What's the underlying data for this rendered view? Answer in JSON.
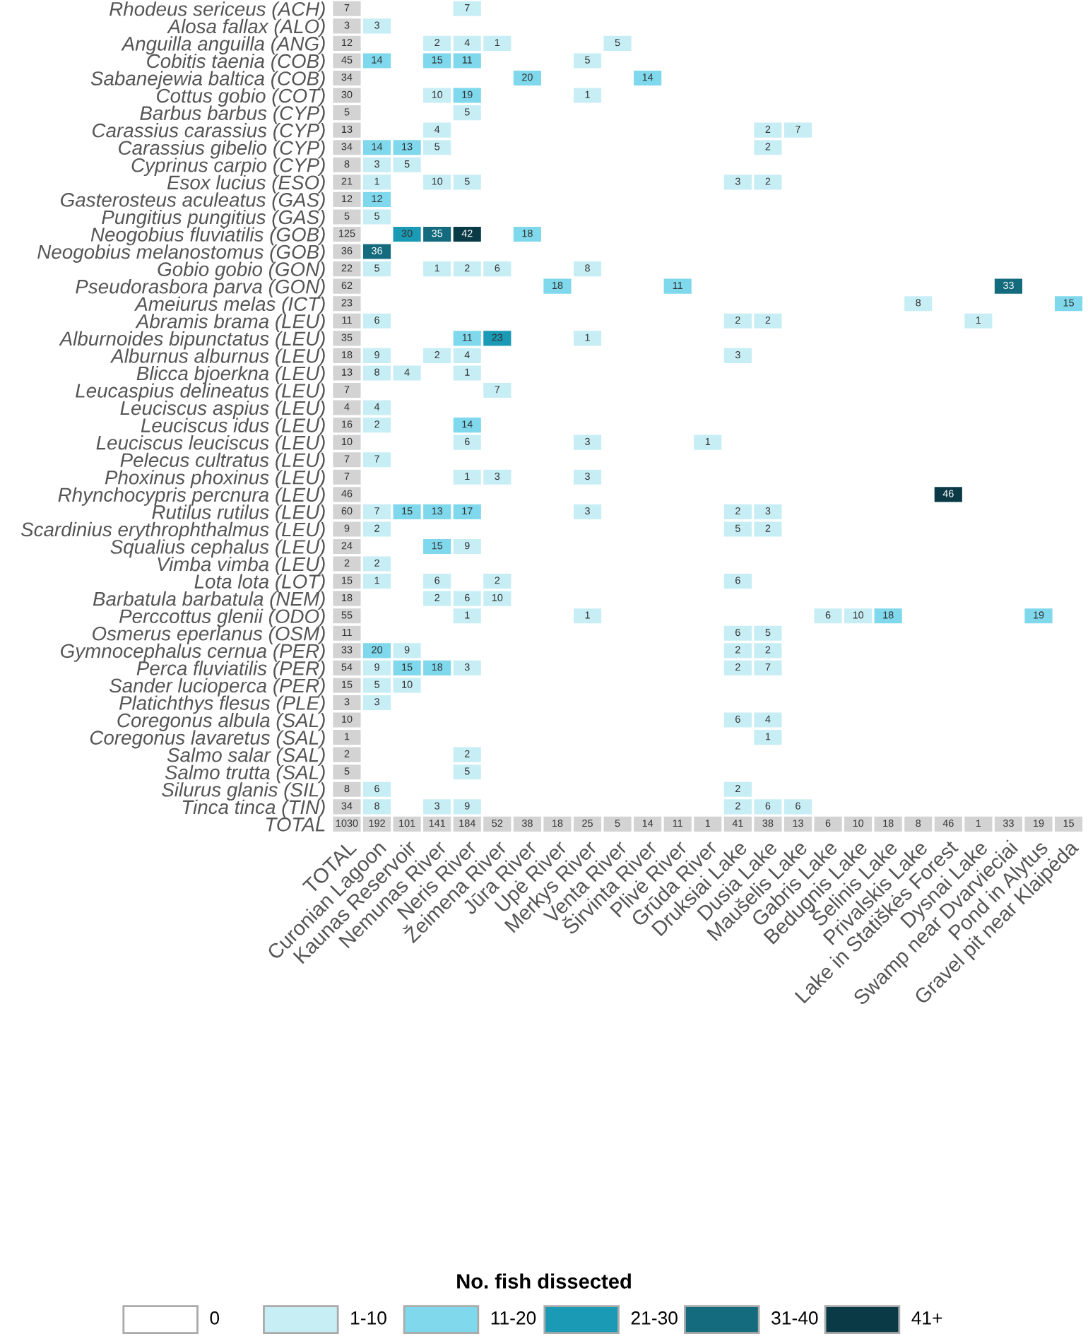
{
  "chart_data": {
    "type": "heatmap",
    "legend_title": "No. fish dissected",
    "data_labels": true,
    "annotations": [
      "0",
      "1-10",
      "11-20",
      "21-30",
      "31-40",
      "41+"
    ],
    "colors": [
      [
        "#d3d3d3",
        null,
        null,
        null,
        "#c8eef5",
        null,
        null,
        null,
        null,
        null,
        null,
        null,
        null,
        null,
        null,
        null,
        null,
        null,
        null,
        null,
        null,
        null,
        null,
        null,
        null
      ],
      [
        "#d3d3d3",
        "#c8eef5",
        null,
        null,
        null,
        null,
        null,
        null,
        null,
        null,
        null,
        null,
        null,
        null,
        null,
        null,
        null,
        null,
        null,
        null,
        null,
        null,
        null,
        null,
        null
      ],
      [
        "#d3d3d3",
        null,
        null,
        "#c8eef5",
        "#c8eef5",
        "#c8eef5",
        null,
        null,
        null,
        "#c8eef5",
        null,
        null,
        null,
        null,
        null,
        null,
        null,
        null,
        null,
        null,
        null,
        null,
        null,
        null,
        null
      ],
      [
        "#d3d3d3",
        "#7fd8ec",
        null,
        "#7fd8ec",
        "#7fd8ec",
        null,
        null,
        null,
        "#c8eef5",
        null,
        null,
        null,
        null,
        null,
        null,
        null,
        null,
        null,
        null,
        null,
        null,
        null,
        null,
        null,
        null
      ],
      [
        "#d3d3d3",
        null,
        null,
        null,
        null,
        null,
        "#7fd8ec",
        null,
        null,
        null,
        "#7fd8ec",
        null,
        null,
        null,
        null,
        null,
        null,
        null,
        null,
        null,
        null,
        null,
        null,
        null,
        null
      ],
      [
        "#d3d3d3",
        null,
        null,
        "#c8eef5",
        "#7fd8ec",
        null,
        null,
        null,
        "#c8eef5",
        null,
        null,
        null,
        null,
        null,
        null,
        null,
        null,
        null,
        null,
        null,
        null,
        null,
        null,
        null,
        null
      ],
      [
        "#d3d3d3",
        null,
        null,
        null,
        "#c8eef5",
        null,
        null,
        null,
        null,
        null,
        null,
        null,
        null,
        null,
        null,
        null,
        null,
        null,
        null,
        null,
        null,
        null,
        null,
        null,
        null
      ],
      [
        "#d3d3d3",
        null,
        null,
        "#c8eef5",
        null,
        null,
        null,
        null,
        null,
        null,
        null,
        null,
        null,
        null,
        "#c8eef5",
        "#c8eef5",
        null,
        null,
        null,
        null,
        null,
        null,
        null,
        null,
        null
      ],
      [
        "#d3d3d3",
        "#7fd8ec",
        "#7fd8ec",
        "#c8eef5",
        null,
        null,
        null,
        null,
        null,
        null,
        null,
        null,
        null,
        null,
        "#c8eef5",
        null,
        null,
        null,
        null,
        null,
        null,
        null,
        null,
        null,
        null
      ],
      [
        "#d3d3d3",
        "#c8eef5",
        "#c8eef5",
        null,
        null,
        null,
        null,
        null,
        null,
        null,
        null,
        null,
        null,
        null,
        null,
        null,
        null,
        null,
        null,
        null,
        null,
        null,
        null,
        null,
        null
      ],
      [
        "#d3d3d3",
        "#c8eef5",
        null,
        "#c8eef5",
        "#c8eef5",
        null,
        null,
        null,
        null,
        null,
        null,
        null,
        null,
        "#c8eef5",
        "#c8eef5",
        null,
        null,
        null,
        null,
        null,
        null,
        null,
        null,
        null,
        null
      ],
      [
        "#d3d3d3",
        "#7fd8ec",
        null,
        null,
        null,
        null,
        null,
        null,
        null,
        null,
        null,
        null,
        null,
        null,
        null,
        null,
        null,
        null,
        null,
        null,
        null,
        null,
        null,
        null,
        null
      ],
      [
        "#d3d3d3",
        "#c8eef5",
        null,
        null,
        null,
        null,
        null,
        null,
        null,
        null,
        null,
        null,
        null,
        null,
        null,
        null,
        null,
        null,
        null,
        null,
        null,
        null,
        null,
        null,
        null
      ],
      [
        "#d3d3d3",
        null,
        "#1a9ab5",
        "#146b7e",
        "#0b3a47",
        null,
        "#7fd8ec",
        null,
        null,
        null,
        null,
        null,
        null,
        null,
        null,
        null,
        null,
        null,
        null,
        null,
        null,
        null,
        null,
        null,
        null
      ],
      [
        "#d3d3d3",
        "#146b7e",
        null,
        null,
        null,
        null,
        null,
        null,
        null,
        null,
        null,
        null,
        null,
        null,
        null,
        null,
        null,
        null,
        null,
        null,
        null,
        null,
        null,
        null,
        null
      ],
      [
        "#d3d3d3",
        "#c8eef5",
        null,
        "#c8eef5",
        "#c8eef5",
        "#c8eef5",
        null,
        null,
        "#c8eef5",
        null,
        null,
        null,
        null,
        null,
        null,
        null,
        null,
        null,
        null,
        null,
        null,
        null,
        null,
        null,
        null
      ],
      [
        "#d3d3d3",
        null,
        null,
        null,
        null,
        null,
        null,
        "#7fd8ec",
        null,
        null,
        null,
        "#7fd8ec",
        null,
        null,
        null,
        null,
        null,
        null,
        null,
        null,
        null,
        null,
        "#146b7e",
        null,
        null
      ],
      [
        "#d3d3d3",
        null,
        null,
        null,
        null,
        null,
        null,
        null,
        null,
        null,
        null,
        null,
        null,
        null,
        null,
        null,
        null,
        null,
        null,
        "#c8eef5",
        null,
        null,
        null,
        null,
        "#7fd8ec"
      ],
      [
        "#d3d3d3",
        "#c8eef5",
        null,
        null,
        null,
        null,
        null,
        null,
        null,
        null,
        null,
        null,
        null,
        "#c8eef5",
        "#c8eef5",
        null,
        null,
        null,
        null,
        null,
        null,
        "#c8eef5",
        null,
        null,
        null
      ],
      [
        "#d3d3d3",
        null,
        null,
        null,
        "#7fd8ec",
        "#1a9ab5",
        null,
        null,
        "#c8eef5",
        null,
        null,
        null,
        null,
        null,
        null,
        null,
        null,
        null,
        null,
        null,
        null,
        null,
        null,
        null,
        null
      ],
      [
        "#d3d3d3",
        "#c8eef5",
        null,
        "#c8eef5",
        "#c8eef5",
        null,
        null,
        null,
        null,
        null,
        null,
        null,
        null,
        "#c8eef5",
        null,
        null,
        null,
        null,
        null,
        null,
        null,
        null,
        null,
        null,
        null
      ],
      [
        "#d3d3d3",
        "#c8eef5",
        "#c8eef5",
        null,
        "#c8eef5",
        null,
        null,
        null,
        null,
        null,
        null,
        null,
        null,
        null,
        null,
        null,
        null,
        null,
        null,
        null,
        null,
        null,
        null,
        null,
        null
      ],
      [
        "#d3d3d3",
        null,
        null,
        null,
        null,
        "#c8eef5",
        null,
        null,
        null,
        null,
        null,
        null,
        null,
        null,
        null,
        null,
        null,
        null,
        null,
        null,
        null,
        null,
        null,
        null,
        null
      ],
      [
        "#d3d3d3",
        "#c8eef5",
        null,
        null,
        null,
        null,
        null,
        null,
        null,
        null,
        null,
        null,
        null,
        null,
        null,
        null,
        null,
        null,
        null,
        null,
        null,
        null,
        null,
        null,
        null
      ],
      [
        "#d3d3d3",
        "#c8eef5",
        null,
        null,
        "#7fd8ec",
        null,
        null,
        null,
        null,
        null,
        null,
        null,
        null,
        null,
        null,
        null,
        null,
        null,
        null,
        null,
        null,
        null,
        null,
        null,
        null
      ],
      [
        "#d3d3d3",
        null,
        null,
        null,
        "#c8eef5",
        null,
        null,
        null,
        "#c8eef5",
        null,
        null,
        null,
        "#c8eef5",
        null,
        null,
        null,
        null,
        null,
        null,
        null,
        null,
        null,
        null,
        null,
        null
      ],
      [
        "#d3d3d3",
        "#c8eef5",
        null,
        null,
        null,
        null,
        null,
        null,
        null,
        null,
        null,
        null,
        null,
        null,
        null,
        null,
        null,
        null,
        null,
        null,
        null,
        null,
        null,
        null,
        null
      ],
      [
        "#d3d3d3",
        null,
        null,
        null,
        "#c8eef5",
        "#c8eef5",
        null,
        null,
        "#c8eef5",
        null,
        null,
        null,
        null,
        null,
        null,
        null,
        null,
        null,
        null,
        null,
        null,
        null,
        null,
        null,
        null
      ],
      [
        "#d3d3d3",
        null,
        null,
        null,
        null,
        null,
        null,
        null,
        null,
        null,
        null,
        null,
        null,
        null,
        null,
        null,
        null,
        null,
        null,
        null,
        "#0b3a47",
        null,
        null,
        null,
        null
      ],
      [
        "#d3d3d3",
        "#c8eef5",
        "#7fd8ec",
        "#7fd8ec",
        "#7fd8ec",
        null,
        null,
        null,
        "#c8eef5",
        null,
        null,
        null,
        null,
        "#c8eef5",
        "#c8eef5",
        null,
        null,
        null,
        null,
        null,
        null,
        null,
        null,
        null,
        null
      ],
      [
        "#d3d3d3",
        "#c8eef5",
        null,
        null,
        null,
        null,
        null,
        null,
        null,
        null,
        null,
        null,
        null,
        "#c8eef5",
        "#c8eef5",
        null,
        null,
        null,
        null,
        null,
        null,
        null,
        null,
        null,
        null
      ],
      [
        "#d3d3d3",
        null,
        null,
        "#7fd8ec",
        "#c8eef5",
        null,
        null,
        null,
        null,
        null,
        null,
        null,
        null,
        null,
        null,
        null,
        null,
        null,
        null,
        null,
        null,
        null,
        null,
        null,
        null
      ],
      [
        "#d3d3d3",
        "#c8eef5",
        null,
        null,
        null,
        null,
        null,
        null,
        null,
        null,
        null,
        null,
        null,
        null,
        null,
        null,
        null,
        null,
        null,
        null,
        null,
        null,
        null,
        null,
        null
      ],
      [
        "#d3d3d3",
        "#c8eef5",
        null,
        "#c8eef5",
        null,
        "#c8eef5",
        null,
        null,
        null,
        null,
        null,
        null,
        null,
        "#c8eef5",
        null,
        null,
        null,
        null,
        null,
        null,
        null,
        null,
        null,
        null,
        null
      ],
      [
        "#d3d3d3",
        null,
        null,
        "#c8eef5",
        "#c8eef5",
        "#c8eef5",
        null,
        null,
        null,
        null,
        null,
        null,
        null,
        null,
        null,
        null,
        null,
        null,
        null,
        null,
        null,
        null,
        null,
        null,
        null
      ],
      [
        "#d3d3d3",
        null,
        null,
        null,
        "#c8eef5",
        null,
        null,
        null,
        "#c8eef5",
        null,
        null,
        null,
        null,
        null,
        null,
        null,
        "#c8eef5",
        "#c8eef5",
        "#7fd8ec",
        null,
        null,
        null,
        null,
        "#7fd8ec",
        null
      ],
      [
        "#d3d3d3",
        null,
        null,
        null,
        null,
        null,
        null,
        null,
        null,
        null,
        null,
        null,
        null,
        "#c8eef5",
        "#c8eef5",
        null,
        null,
        null,
        null,
        null,
        null,
        null,
        null,
        null,
        null
      ],
      [
        "#d3d3d3",
        "#7fd8ec",
        "#c8eef5",
        null,
        null,
        null,
        null,
        null,
        null,
        null,
        null,
        null,
        null,
        "#c8eef5",
        "#c8eef5",
        null,
        null,
        null,
        null,
        null,
        null,
        null,
        null,
        null,
        null
      ],
      [
        "#d3d3d3",
        "#c8eef5",
        "#7fd8ec",
        "#7fd8ec",
        "#c8eef5",
        null,
        null,
        null,
        null,
        null,
        null,
        null,
        null,
        "#c8eef5",
        "#c8eef5",
        null,
        null,
        null,
        null,
        null,
        null,
        null,
        null,
        null,
        null
      ],
      [
        "#d3d3d3",
        "#c8eef5",
        "#c8eef5",
        null,
        null,
        null,
        null,
        null,
        null,
        null,
        null,
        null,
        null,
        null,
        null,
        null,
        null,
        null,
        null,
        null,
        null,
        null,
        null,
        null,
        null
      ],
      [
        "#d3d3d3",
        "#c8eef5",
        null,
        null,
        null,
        null,
        null,
        null,
        null,
        null,
        null,
        null,
        null,
        null,
        null,
        null,
        null,
        null,
        null,
        null,
        null,
        null,
        null,
        null,
        null
      ],
      [
        "#d3d3d3",
        null,
        null,
        null,
        null,
        null,
        null,
        null,
        null,
        null,
        null,
        null,
        null,
        "#c8eef5",
        "#c8eef5",
        null,
        null,
        null,
        null,
        null,
        null,
        null,
        null,
        null,
        null
      ],
      [
        "#d3d3d3",
        null,
        null,
        null,
        null,
        null,
        null,
        null,
        null,
        null,
        null,
        null,
        null,
        null,
        "#c8eef5",
        null,
        null,
        null,
        null,
        null,
        null,
        null,
        null,
        null,
        null
      ],
      [
        "#d3d3d3",
        null,
        null,
        null,
        "#c8eef5",
        null,
        null,
        null,
        null,
        null,
        null,
        null,
        null,
        null,
        null,
        null,
        null,
        null,
        null,
        null,
        null,
        null,
        null,
        null,
        null
      ],
      [
        "#d3d3d3",
        null,
        null,
        null,
        "#c8eef5",
        null,
        null,
        null,
        null,
        null,
        null,
        null,
        null,
        null,
        null,
        null,
        null,
        null,
        null,
        null,
        null,
        null,
        null,
        null,
        null
      ],
      [
        "#d3d3d3",
        "#c8eef5",
        null,
        null,
        null,
        null,
        null,
        null,
        null,
        null,
        null,
        null,
        null,
        "#c8eef5",
        null,
        null,
        null,
        null,
        null,
        null,
        null,
        null,
        null,
        null,
        null
      ],
      [
        "#d3d3d3",
        "#c8eef5",
        null,
        "#c8eef5",
        "#c8eef5",
        null,
        null,
        null,
        null,
        null,
        null,
        null,
        null,
        "#c8eef5",
        "#c8eef5",
        "#c8eef5",
        null,
        null,
        null,
        null,
        null,
        null,
        null,
        null,
        null
      ],
      [
        "#d3d3d3",
        "#d3d3d3",
        "#d3d3d3",
        "#d3d3d3",
        "#d3d3d3",
        "#d3d3d3",
        "#d3d3d3",
        "#d3d3d3",
        "#d3d3d3",
        "#d3d3d3",
        "#d3d3d3",
        "#d3d3d3",
        "#d3d3d3",
        "#d3d3d3",
        "#d3d3d3",
        "#d3d3d3",
        "#d3d3d3",
        "#d3d3d3",
        "#d3d3d3",
        "#d3d3d3",
        "#d3d3d3",
        "#d3d3d3",
        "#d3d3d3",
        "#d3d3d3",
        "#d3d3d3"
      ]
    ],
    "categories": [
      "TOTAL",
      "Curonian Lagoon",
      "Kaunas Reservoir",
      "Nemunas River",
      "Neris River",
      "Žeimena River",
      "Jūra River",
      "Upė River",
      "Merkys River",
      "Venta River",
      "Širvinta River",
      "Plivė River",
      "Grūda River",
      "Druksiai Lake",
      "Dusia Lake",
      "Maušelis Lake",
      "Gabris Lake",
      "Bedugnis Lake",
      "Šelinis Lake",
      "Privalskis Lake",
      "Lake in Statiškės Forest",
      "Dysnai Lake",
      "Swamp near Dvarvieciai",
      "Pond in Alytus",
      "Gravel pit near Klaipėda"
    ],
    "y_categories": [
      "Rhodeus sericeus (ACH)",
      "Alosa fallax (ALO)",
      "Anguilla anguilla (ANG)",
      "Cobitis taenia (COB)",
      "Sabanejewia baltica (COB)",
      "Cottus gobio (COT)",
      "Barbus barbus (CYP)",
      "Carassius carassius (CYP)",
      "Carassius gibelio (CYP)",
      "Cyprinus carpio (CYP)",
      "Esox lucius (ESO)",
      "Gasterosteus aculeatus (GAS)",
      "Pungitius pungitius (GAS)",
      "Neogobius fluviatilis (GOB)",
      "Neogobius melanostomus (GOB)",
      "Gobio gobio (GON)",
      "Pseudorasbora parva (GON)",
      "Ameiurus melas (ICT)",
      "Abramis brama (LEU)",
      "Alburnoides bipunctatus (LEU)",
      "Alburnus alburnus (LEU)",
      "Blicca bjoerkna (LEU)",
      "Leucaspius delineatus (LEU)",
      "Leuciscus aspius (LEU)",
      "Leuciscus idus (LEU)",
      "Leuciscus leuciscus (LEU)",
      "Pelecus cultratus (LEU)",
      "Phoxinus phoxinus (LEU)",
      "Rhynchocypris percnura (LEU)",
      "Rutilus rutilus (LEU)",
      "Scardinius erythrophthalmus (LEU)",
      "Squalius cephalus (LEU)",
      "Vimba vimba (LEU)",
      "Lota lota (LOT)",
      "Barbatula barbatula (NEM)",
      "Perccottus glenii (ODO)",
      "Osmerus eperlanus (OSM)",
      "Gymnocephalus cernua (PER)",
      "Perca fluviatilis (PER)",
      "Sander lucioperca (PER)",
      "Platichthys flesus (PLE)",
      "Coregonus albula (SAL)",
      "Coregonus lavaretus (SAL)",
      "Salmo salar (SAL)",
      "Salmo trutta (SAL)",
      "Silurus glanis (SIL)",
      "Tinca tinca (TIN)",
      "TOTAL"
    ],
    "cells": [
      [
        7,
        null,
        null,
        null,
        7,
        null,
        null,
        null,
        null,
        null,
        null,
        null,
        null,
        null,
        null,
        null,
        null,
        null,
        null,
        null,
        null,
        null,
        null,
        null,
        null
      ],
      [
        3,
        3,
        null,
        null,
        null,
        null,
        null,
        null,
        null,
        null,
        null,
        null,
        null,
        null,
        null,
        null,
        null,
        null,
        null,
        null,
        null,
        null,
        null,
        null,
        null
      ],
      [
        12,
        null,
        null,
        2,
        4,
        1,
        null,
        null,
        null,
        5,
        null,
        null,
        null,
        null,
        null,
        null,
        null,
        null,
        null,
        null,
        null,
        null,
        null,
        null,
        null
      ],
      [
        45,
        14,
        null,
        15,
        11,
        null,
        null,
        null,
        5,
        null,
        null,
        null,
        null,
        null,
        null,
        null,
        null,
        null,
        null,
        null,
        null,
        null,
        null,
        null,
        null
      ],
      [
        34,
        null,
        null,
        null,
        null,
        null,
        20,
        null,
        null,
        null,
        14,
        null,
        null,
        null,
        null,
        null,
        null,
        null,
        null,
        null,
        null,
        null,
        null,
        null,
        null
      ],
      [
        30,
        null,
        null,
        10,
        19,
        null,
        null,
        null,
        1,
        null,
        null,
        null,
        null,
        null,
        null,
        null,
        null,
        null,
        null,
        null,
        null,
        null,
        null,
        null,
        null
      ],
      [
        5,
        null,
        null,
        null,
        5,
        null,
        null,
        null,
        null,
        null,
        null,
        null,
        null,
        null,
        null,
        null,
        null,
        null,
        null,
        null,
        null,
        null,
        null,
        null,
        null
      ],
      [
        13,
        null,
        null,
        4,
        null,
        null,
        null,
        null,
        null,
        null,
        null,
        null,
        null,
        null,
        2,
        7,
        null,
        null,
        null,
        null,
        null,
        null,
        null,
        null,
        null
      ],
      [
        34,
        14,
        13,
        5,
        null,
        null,
        null,
        null,
        null,
        null,
        null,
        null,
        null,
        null,
        2,
        null,
        null,
        null,
        null,
        null,
        null,
        null,
        null,
        null,
        null
      ],
      [
        8,
        3,
        5,
        null,
        null,
        null,
        null,
        null,
        null,
        null,
        null,
        null,
        null,
        null,
        null,
        null,
        null,
        null,
        null,
        null,
        null,
        null,
        null,
        null,
        null
      ],
      [
        21,
        1,
        null,
        10,
        5,
        null,
        null,
        null,
        null,
        null,
        null,
        null,
        null,
        3,
        2,
        null,
        null,
        null,
        null,
        null,
        null,
        null,
        null,
        null,
        null
      ],
      [
        12,
        12,
        null,
        null,
        null,
        null,
        null,
        null,
        null,
        null,
        null,
        null,
        null,
        null,
        null,
        null,
        null,
        null,
        null,
        null,
        null,
        null,
        null,
        null,
        null
      ],
      [
        5,
        5,
        null,
        null,
        null,
        null,
        null,
        null,
        null,
        null,
        null,
        null,
        null,
        null,
        null,
        null,
        null,
        null,
        null,
        null,
        null,
        null,
        null,
        null,
        null
      ],
      [
        125,
        null,
        30,
        35,
        42,
        null,
        18,
        null,
        null,
        null,
        null,
        null,
        null,
        null,
        null,
        null,
        null,
        null,
        null,
        null,
        null,
        null,
        null,
        null,
        null
      ],
      [
        36,
        36,
        null,
        null,
        null,
        null,
        null,
        null,
        null,
        null,
        null,
        null,
        null,
        null,
        null,
        null,
        null,
        null,
        null,
        null,
        null,
        null,
        null,
        null,
        null
      ],
      [
        22,
        5,
        null,
        1,
        2,
        6,
        null,
        null,
        8,
        null,
        null,
        null,
        null,
        null,
        null,
        null,
        null,
        null,
        null,
        null,
        null,
        null,
        null,
        null,
        null
      ],
      [
        62,
        null,
        null,
        null,
        null,
        null,
        null,
        18,
        null,
        null,
        null,
        11,
        null,
        null,
        null,
        null,
        null,
        null,
        null,
        null,
        null,
        null,
        33,
        null,
        null
      ],
      [
        23,
        null,
        null,
        null,
        null,
        null,
        null,
        null,
        null,
        null,
        null,
        null,
        null,
        null,
        null,
        null,
        null,
        null,
        null,
        8,
        null,
        null,
        null,
        null,
        15
      ],
      [
        11,
        6,
        null,
        null,
        null,
        null,
        null,
        null,
        null,
        null,
        null,
        null,
        null,
        2,
        2,
        null,
        null,
        null,
        null,
        null,
        null,
        1,
        null,
        null,
        null
      ],
      [
        35,
        null,
        null,
        null,
        11,
        23,
        null,
        null,
        1,
        null,
        null,
        null,
        null,
        null,
        null,
        null,
        null,
        null,
        null,
        null,
        null,
        null,
        null,
        null,
        null
      ],
      [
        18,
        9,
        null,
        2,
        4,
        null,
        null,
        null,
        null,
        null,
        null,
        null,
        null,
        3,
        null,
        null,
        null,
        null,
        null,
        null,
        null,
        null,
        null,
        null,
        null
      ],
      [
        13,
        8,
        4,
        null,
        1,
        null,
        null,
        null,
        null,
        null,
        null,
        null,
        null,
        null,
        null,
        null,
        null,
        null,
        null,
        null,
        null,
        null,
        null,
        null,
        null
      ],
      [
        7,
        null,
        null,
        null,
        null,
        7,
        null,
        null,
        null,
        null,
        null,
        null,
        null,
        null,
        null,
        null,
        null,
        null,
        null,
        null,
        null,
        null,
        null,
        null,
        null
      ],
      [
        4,
        4,
        null,
        null,
        null,
        null,
        null,
        null,
        null,
        null,
        null,
        null,
        null,
        null,
        null,
        null,
        null,
        null,
        null,
        null,
        null,
        null,
        null,
        null,
        null
      ],
      [
        16,
        2,
        null,
        null,
        14,
        null,
        null,
        null,
        null,
        null,
        null,
        null,
        null,
        null,
        null,
        null,
        null,
        null,
        null,
        null,
        null,
        null,
        null,
        null,
        null
      ],
      [
        10,
        null,
        null,
        null,
        6,
        null,
        null,
        null,
        3,
        null,
        null,
        null,
        1,
        null,
        null,
        null,
        null,
        null,
        null,
        null,
        null,
        null,
        null,
        null,
        null
      ],
      [
        7,
        7,
        null,
        null,
        null,
        null,
        null,
        null,
        null,
        null,
        null,
        null,
        null,
        null,
        null,
        null,
        null,
        null,
        null,
        null,
        null,
        null,
        null,
        null,
        null
      ],
      [
        7,
        null,
        null,
        null,
        1,
        3,
        null,
        null,
        3,
        null,
        null,
        null,
        null,
        null,
        null,
        null,
        null,
        null,
        null,
        null,
        null,
        null,
        null,
        null,
        null
      ],
      [
        46,
        null,
        null,
        null,
        null,
        null,
        null,
        null,
        null,
        null,
        null,
        null,
        null,
        null,
        null,
        null,
        null,
        null,
        null,
        null,
        46,
        null,
        null,
        null,
        null
      ],
      [
        60,
        7,
        15,
        13,
        17,
        null,
        null,
        null,
        3,
        null,
        null,
        null,
        null,
        2,
        3,
        null,
        null,
        null,
        null,
        null,
        null,
        null,
        null,
        null,
        null
      ],
      [
        9,
        2,
        null,
        null,
        null,
        null,
        null,
        null,
        null,
        null,
        null,
        null,
        null,
        5,
        2,
        null,
        null,
        null,
        null,
        null,
        null,
        null,
        null,
        null,
        null
      ],
      [
        24,
        null,
        null,
        15,
        9,
        null,
        null,
        null,
        null,
        null,
        null,
        null,
        null,
        null,
        null,
        null,
        null,
        null,
        null,
        null,
        null,
        null,
        null,
        null,
        null
      ],
      [
        2,
        2,
        null,
        null,
        null,
        null,
        null,
        null,
        null,
        null,
        null,
        null,
        null,
        null,
        null,
        null,
        null,
        null,
        null,
        null,
        null,
        null,
        null,
        null,
        null
      ],
      [
        15,
        1,
        null,
        6,
        null,
        2,
        null,
        null,
        null,
        null,
        null,
        null,
        null,
        6,
        null,
        null,
        null,
        null,
        null,
        null,
        null,
        null,
        null,
        null,
        null
      ],
      [
        18,
        null,
        null,
        2,
        6,
        10,
        null,
        null,
        null,
        null,
        null,
        null,
        null,
        null,
        null,
        null,
        null,
        null,
        null,
        null,
        null,
        null,
        null,
        null,
        null
      ],
      [
        55,
        null,
        null,
        null,
        1,
        null,
        null,
        null,
        1,
        null,
        null,
        null,
        null,
        null,
        null,
        null,
        6,
        10,
        18,
        null,
        null,
        null,
        null,
        19,
        null
      ],
      [
        11,
        null,
        null,
        null,
        null,
        null,
        null,
        null,
        null,
        null,
        null,
        null,
        null,
        6,
        5,
        null,
        null,
        null,
        null,
        null,
        null,
        null,
        null,
        null,
        null
      ],
      [
        33,
        20,
        9,
        null,
        null,
        null,
        null,
        null,
        null,
        null,
        null,
        null,
        null,
        2,
        2,
        null,
        null,
        null,
        null,
        null,
        null,
        null,
        null,
        null,
        null
      ],
      [
        54,
        9,
        15,
        18,
        3,
        null,
        null,
        null,
        null,
        null,
        null,
        null,
        null,
        2,
        7,
        null,
        null,
        null,
        null,
        null,
        null,
        null,
        null,
        null,
        null
      ],
      [
        15,
        5,
        10,
        null,
        null,
        null,
        null,
        null,
        null,
        null,
        null,
        null,
        null,
        null,
        null,
        null,
        null,
        null,
        null,
        null,
        null,
        null,
        null,
        null,
        null
      ],
      [
        3,
        3,
        null,
        null,
        null,
        null,
        null,
        null,
        null,
        null,
        null,
        null,
        null,
        null,
        null,
        null,
        null,
        null,
        null,
        null,
        null,
        null,
        null,
        null,
        null
      ],
      [
        10,
        null,
        null,
        null,
        null,
        null,
        null,
        null,
        null,
        null,
        null,
        null,
        null,
        6,
        4,
        null,
        null,
        null,
        null,
        null,
        null,
        null,
        null,
        null,
        null
      ],
      [
        1,
        null,
        null,
        null,
        null,
        null,
        null,
        null,
        null,
        null,
        null,
        null,
        null,
        null,
        1,
        null,
        null,
        null,
        null,
        null,
        null,
        null,
        null,
        null,
        null
      ],
      [
        2,
        null,
        null,
        null,
        2,
        null,
        null,
        null,
        null,
        null,
        null,
        null,
        null,
        null,
        null,
        null,
        null,
        null,
        null,
        null,
        null,
        null,
        null,
        null,
        null
      ],
      [
        5,
        null,
        null,
        null,
        5,
        null,
        null,
        null,
        null,
        null,
        null,
        null,
        null,
        null,
        null,
        null,
        null,
        null,
        null,
        null,
        null,
        null,
        null,
        null,
        null
      ],
      [
        8,
        6,
        null,
        null,
        null,
        null,
        null,
        null,
        null,
        null,
        null,
        null,
        null,
        2,
        null,
        null,
        null,
        null,
        null,
        null,
        null,
        null,
        null,
        null,
        null
      ],
      [
        34,
        8,
        null,
        3,
        9,
        null,
        null,
        null,
        null,
        null,
        null,
        null,
        null,
        2,
        6,
        6,
        null,
        null,
        null,
        null,
        null,
        null,
        null,
        null,
        null
      ],
      [
        1030,
        192,
        101,
        141,
        184,
        52,
        38,
        18,
        25,
        5,
        14,
        11,
        1,
        41,
        38,
        13,
        6,
        10,
        18,
        8,
        46,
        1,
        33,
        19,
        15
      ]
    ]
  }
}
